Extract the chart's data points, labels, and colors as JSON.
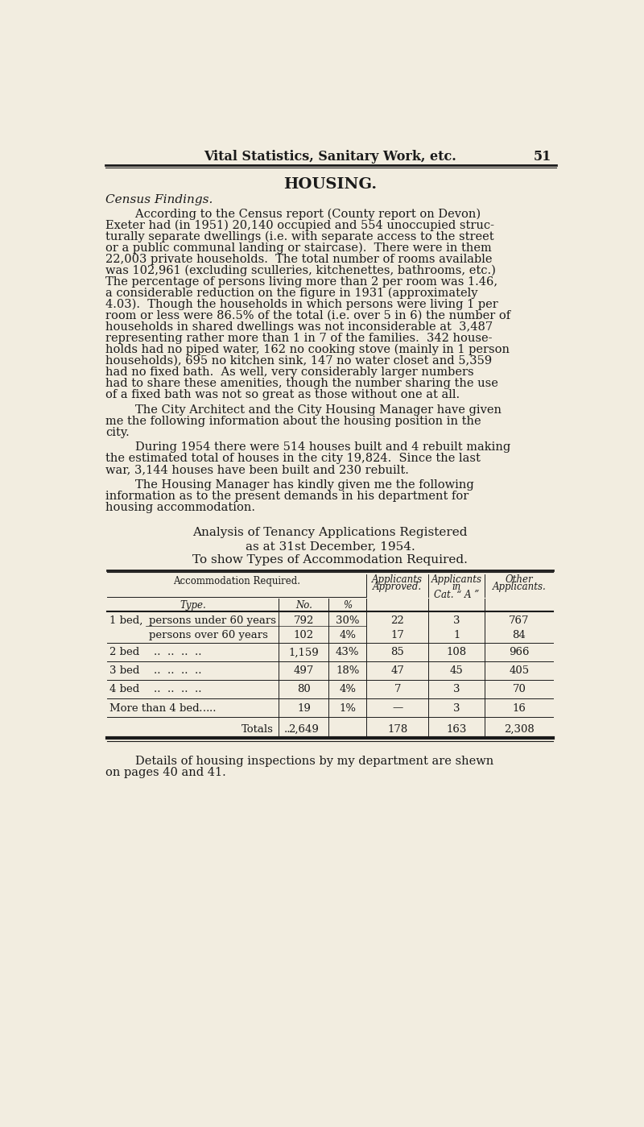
{
  "bg_color": "#f2ede0",
  "text_color": "#1a1a1a",
  "header_center": "Vital Statistics, Sanitary Work, etc.",
  "header_page": "51",
  "section_title": "HOUSING.",
  "section_subtitle": "Census Findings.",
  "para1_lines": [
    "        According to the Census report (County report on Devon)",
    "Exeter had (in 1951) 20,140 occupied and 554 unoccupied struc-",
    "turally separate dwellings (i.e. with separate access to the street",
    "or a public communal landing or staircase).  There were in them",
    "22,003 private households.  The total number of rooms available",
    "was 102,961 (excluding sculleries, kitchenettes, bathrooms, etc.)",
    "The percentage of persons living more than 2 per room was 1.46,",
    "a considerable reduction on the figure in 1931 (approximately",
    "4.03).  Though the households in which persons were living 1 per",
    "room or less were 86.5% of the total (i.e. over 5 in 6) the number of",
    "households in shared dwellings was not inconsiderable at  3,487",
    "representing rather more than 1 in 7 of the families.  342 house-",
    "holds had no piped water, 162 no cooking stove (mainly in 1 person",
    "households), 695 no kitchen sink, 147 no water closet and 5,359",
    "had no fixed bath.  As well, very considerably larger numbers",
    "had to share these amenities, though the number sharing the use",
    "of a fixed bath was not so great as those without one at all."
  ],
  "para2_lines": [
    "        The City Architect and the City Housing Manager have given",
    "me the following information about the housing position in the",
    "city."
  ],
  "para3_lines": [
    "        During 1954 there were 514 houses built and 4 rebuilt making",
    "the estimated total of houses in the city 19,824.  Since the last",
    "war, 3,144 houses have been built and 230 rebuilt."
  ],
  "para4_lines": [
    "        The Housing Manager has kindly given me the following",
    "information as to the present demands in his department for",
    "housing accommodation."
  ],
  "table_title1": "Analysis of Tenancy Applications Registered",
  "table_title2": "as at 31st December, 1954.",
  "table_title3": "To show Types of Accommodation Required.",
  "footer_lines": [
    "        Details of housing inspections by my department are shewn",
    "on pages 40 and 41."
  ]
}
